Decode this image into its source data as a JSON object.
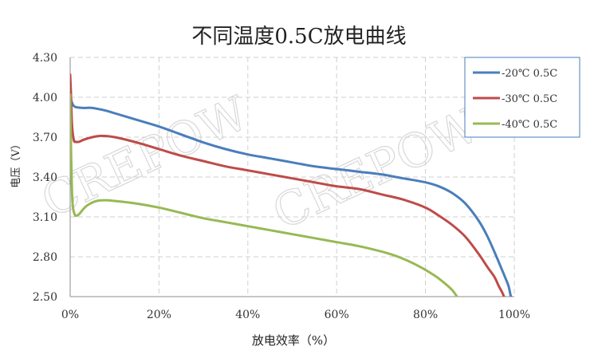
{
  "chart_data": {
    "type": "line",
    "title": "不同温度0.5C放电曲线",
    "xlabel": "放电效率（%）",
    "ylabel": "电压（V）",
    "xlim": [
      0,
      100
    ],
    "ylim": [
      2.5,
      4.3
    ],
    "x_ticks": [
      "0%",
      "20%",
      "40%",
      "60%",
      "80%",
      "100%"
    ],
    "y_ticks": [
      "2.50",
      "2.80",
      "3.10",
      "3.40",
      "3.70",
      "4.00",
      "4.30"
    ],
    "grid": true,
    "legend_position": "top-right",
    "series": [
      {
        "name": "-20℃ 0.5C",
        "color": "#4a7ebb",
        "x": [
          0,
          0.3,
          1,
          3,
          5,
          8,
          10,
          15,
          20,
          25,
          30,
          35,
          40,
          45,
          50,
          55,
          60,
          65,
          70,
          75,
          80,
          83,
          86,
          89,
          92,
          94,
          96,
          97,
          98,
          98.7,
          99.1,
          99.3
        ],
        "y": [
          4.02,
          3.97,
          3.93,
          3.92,
          3.92,
          3.9,
          3.88,
          3.83,
          3.78,
          3.72,
          3.66,
          3.61,
          3.57,
          3.54,
          3.51,
          3.48,
          3.46,
          3.44,
          3.42,
          3.39,
          3.36,
          3.33,
          3.28,
          3.2,
          3.07,
          2.95,
          2.8,
          2.72,
          2.64,
          2.58,
          2.52,
          2.49
        ]
      },
      {
        "name": "-30℃ 0.5C",
        "color": "#be4b48",
        "x": [
          0,
          0.15,
          0.4,
          0.8,
          1.2,
          2,
          3,
          5,
          7,
          10,
          15,
          20,
          25,
          30,
          35,
          40,
          45,
          50,
          55,
          60,
          65,
          70,
          75,
          80,
          83,
          86,
          89,
          92,
          94,
          95.5,
          96.5,
          97.3,
          97.8
        ],
        "y": [
          4.17,
          4.05,
          3.8,
          3.68,
          3.665,
          3.665,
          3.68,
          3.7,
          3.71,
          3.7,
          3.66,
          3.61,
          3.56,
          3.52,
          3.48,
          3.45,
          3.42,
          3.39,
          3.36,
          3.33,
          3.31,
          3.27,
          3.23,
          3.17,
          3.11,
          3.04,
          2.95,
          2.82,
          2.72,
          2.65,
          2.58,
          2.53,
          2.49
        ]
      },
      {
        "name": "-40℃ 0.5C",
        "color": "#98b954",
        "x": [
          0,
          0.2,
          0.5,
          1,
          1.5,
          2,
          3,
          4,
          6,
          8,
          10,
          15,
          20,
          25,
          30,
          35,
          40,
          45,
          50,
          55,
          60,
          65,
          70,
          73,
          76,
          79,
          82,
          84,
          86,
          87.3
        ],
        "y": [
          4.02,
          3.6,
          3.22,
          3.12,
          3.11,
          3.12,
          3.16,
          3.19,
          3.22,
          3.225,
          3.22,
          3.2,
          3.17,
          3.13,
          3.09,
          3.06,
          3.03,
          3.0,
          2.97,
          2.94,
          2.91,
          2.88,
          2.84,
          2.81,
          2.77,
          2.72,
          2.66,
          2.61,
          2.55,
          2.49
        ]
      }
    ]
  },
  "watermark": {
    "text": "CREPOW"
  }
}
